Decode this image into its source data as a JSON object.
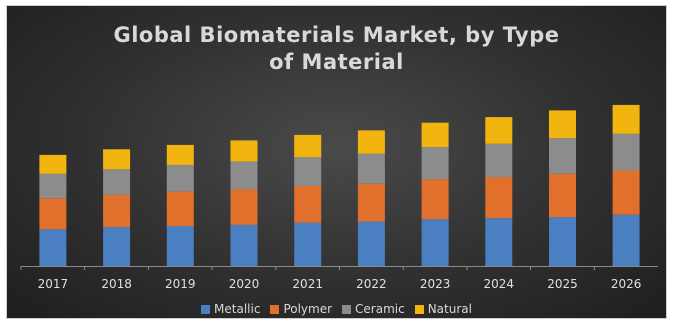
{
  "chart_data": {
    "type": "bar",
    "stacked": true,
    "title": "Global Biomaterials Market, by Type of Material",
    "title_lines": [
      "Global Biomaterials Market, by Type",
      "of Material"
    ],
    "xlabel": "",
    "ylabel": "",
    "categories": [
      "2017",
      "2018",
      "2019",
      "2020",
      "2021",
      "2022",
      "2023",
      "2024",
      "2025",
      "2026"
    ],
    "series": [
      {
        "name": "Metallic",
        "color": "#4a7fc1",
        "values": [
          33,
          35,
          36,
          37,
          39,
          40,
          42,
          43,
          44,
          46
        ]
      },
      {
        "name": "Polymer",
        "color": "#e0702b",
        "values": [
          28,
          29,
          31,
          32,
          33,
          34,
          36,
          37,
          39,
          40
        ]
      },
      {
        "name": "Ceramic",
        "color": "#8c8c8c",
        "values": [
          22,
          23,
          24,
          25,
          26,
          27,
          29,
          30,
          32,
          33
        ]
      },
      {
        "name": "Natural",
        "color": "#f2b50f",
        "values": [
          17,
          18,
          18,
          19,
          20,
          21,
          22,
          24,
          25,
          26
        ]
      }
    ],
    "ylim": [
      0,
      180
    ],
    "grid": false,
    "legend_position": "bottom"
  }
}
